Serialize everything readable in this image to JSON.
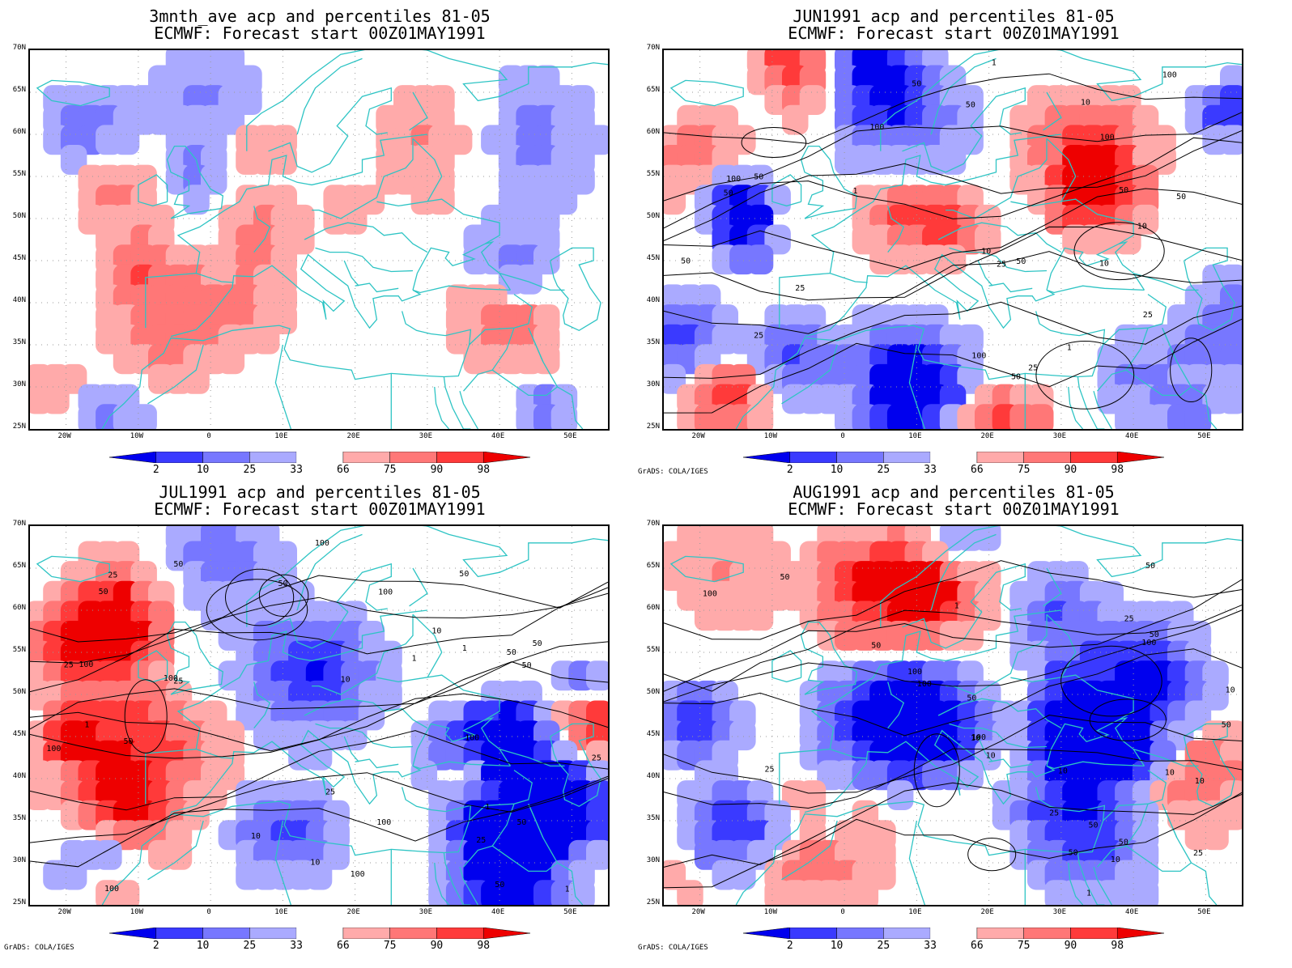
{
  "panels": [
    {
      "id": "p1",
      "title_line1": "3mnth_ave acp and percentiles 81-05",
      "title_line2": "ECMWF: Forecast start 00Z01MAY1991",
      "credit": "",
      "contour_labels": []
    },
    {
      "id": "p2",
      "title_line1": "JUN1991 acp and percentiles 81-05",
      "title_line2": "ECMWF: Forecast start 00Z01MAY1991",
      "credit": "GrADS: COLA/IGES",
      "contour_labels": [
        "50",
        "100",
        "50",
        "50",
        "100",
        "50",
        "50",
        "100",
        "100",
        "50",
        "25",
        "50",
        "25",
        "100",
        "25",
        "50",
        "10",
        "25",
        "10",
        "50",
        "10",
        "10",
        "1",
        "25",
        "1",
        "1"
      ]
    },
    {
      "id": "p3",
      "title_line1": "JUL1991 acp and percentiles 81-05",
      "title_line2": "ECMWF: Forecast start 00Z01MAY1991",
      "credit": "GrADS: COLA/IGES",
      "contour_labels": [
        "50",
        "50",
        "100",
        "100",
        "50",
        "50",
        "100",
        "100",
        "100",
        "100",
        "25",
        "100",
        "50",
        "50",
        "100",
        "25",
        "50",
        "50",
        "25",
        "10",
        "1",
        "50",
        "25",
        "10",
        "100",
        "50",
        "25",
        "10",
        "1",
        "1",
        "1",
        "10",
        "1",
        "25"
      ]
    },
    {
      "id": "p4",
      "title_line1": "AUG1991 acp and percentiles 81-05",
      "title_line2": "ECMWF: Forecast start 00Z01MAY1991",
      "credit": "GrADS: COLA/IGES",
      "contour_labels": [
        "50",
        "100",
        "50",
        "100",
        "100",
        "50",
        "50",
        "100",
        "50",
        "50",
        "25",
        "50",
        "10",
        "25",
        "10",
        "10",
        "1",
        "50",
        "25",
        "10",
        "100",
        "25",
        "50",
        "10",
        "1",
        "10",
        "10"
      ]
    }
  ],
  "lat_ticks": [
    "70N",
    "65N",
    "60N",
    "55N",
    "50N",
    "45N",
    "40N",
    "35N",
    "30N",
    "25N"
  ],
  "lon_ticks": [
    "20W",
    "10W",
    "0",
    "10E",
    "20E",
    "30E",
    "40E",
    "50E"
  ],
  "colorbar": {
    "labels": [
      "2",
      "10",
      "25",
      "33",
      "66",
      "75",
      "90",
      "98"
    ],
    "colors": [
      "#0000ee",
      "#3a3aff",
      "#7777ff",
      "#aaaaff",
      "#ffffff",
      "#ffaaaa",
      "#ff7777",
      "#ff3a3a",
      "#ee0000"
    ]
  },
  "colors": {
    "coast": "#2ec4c4",
    "grid": "#999999",
    "contour": "#000000"
  }
}
